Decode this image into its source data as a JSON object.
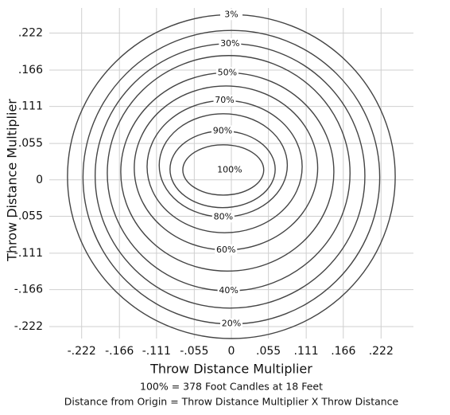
{
  "chart_data": {
    "type": "contour",
    "xlabel": "Throw Distance Multiplier",
    "ylabel": "Throw Distance Multiplier",
    "notes": [
      "100% = 378 Foot Candles at 18 Feet",
      "Distance from Origin = Throw Distance Multiplier X Throw Distance"
    ],
    "xlim": [
      -0.27,
      0.27
    ],
    "ylim": [
      -0.24,
      0.26
    ],
    "xticks": [
      {
        "value": -0.222,
        "label": "-.222"
      },
      {
        "value": -0.166,
        "label": "-.166"
      },
      {
        "value": -0.111,
        "label": "-.111"
      },
      {
        "value": -0.055,
        "label": "-.055"
      },
      0,
      {
        "value": 0.055,
        "label": ".055"
      },
      {
        "value": 0.111,
        "label": ".111"
      },
      {
        "value": 0.166,
        "label": ".166"
      },
      {
        "value": 0.222,
        "label": ".222"
      }
    ],
    "yticks": [
      {
        "value": 0.222,
        "label": ".222"
      },
      {
        "value": 0.166,
        "label": ".166"
      },
      {
        "value": 0.111,
        "label": ".111"
      },
      {
        "value": 0.055,
        "label": ".055"
      },
      0,
      {
        "value": -0.055,
        "label": "-.055"
      },
      {
        "value": -0.111,
        "label": "-.111"
      },
      {
        "value": -0.166,
        "label": "-.166"
      },
      {
        "value": -0.222,
        "label": "-.222"
      }
    ],
    "grid": true,
    "color": "#444444",
    "contours": [
      {
        "level": 3,
        "label": "3%",
        "cx": 0.0,
        "cy": 0.005,
        "rx": 0.243,
        "ry": 0.245
      },
      {
        "level": 20,
        "label": "20%",
        "cx": 0.0,
        "cy": 0.004,
        "rx": 0.22,
        "ry": 0.222
      },
      {
        "level": 30,
        "label": "30%",
        "cx": -0.002,
        "cy": 0.006,
        "rx": 0.2,
        "ry": 0.2
      },
      {
        "level": 40,
        "label": "40%",
        "cx": -0.004,
        "cy": 0.01,
        "rx": 0.18,
        "ry": 0.178
      },
      {
        "level": 50,
        "label": "50%",
        "cx": -0.006,
        "cy": 0.012,
        "rx": 0.158,
        "ry": 0.15
      },
      {
        "level": 60,
        "label": "60%",
        "cx": -0.008,
        "cy": 0.018,
        "rx": 0.136,
        "ry": 0.124
      },
      {
        "level": 70,
        "label": "70%",
        "cx": -0.01,
        "cy": 0.02,
        "rx": 0.115,
        "ry": 0.1
      },
      {
        "level": 80,
        "label": "80%",
        "cx": -0.012,
        "cy": 0.022,
        "rx": 0.095,
        "ry": 0.078
      },
      {
        "level": 90,
        "label": "90%",
        "cx": -0.013,
        "cy": 0.016,
        "rx": 0.078,
        "ry": 0.058
      },
      {
        "level": 100,
        "label": "100%",
        "cx": -0.012,
        "cy": 0.015,
        "rx": 0.06,
        "ry": 0.038
      }
    ]
  }
}
